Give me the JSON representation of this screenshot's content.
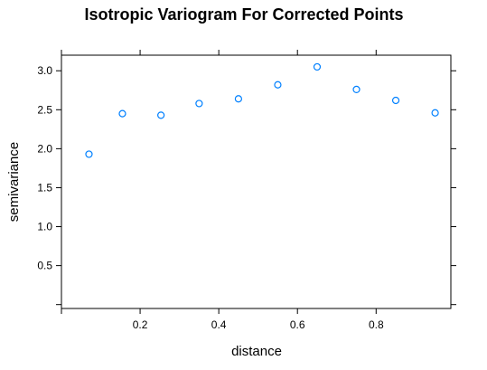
{
  "chart_data": {
    "type": "scatter",
    "title": "Isotropic Variogram For Corrected Points",
    "xlabel": "distance",
    "ylabel": "semivariance",
    "xlim": [
      0,
      0.99
    ],
    "ylim": [
      -0.05,
      3.2
    ],
    "x_ticks": [
      0.2,
      0.4,
      0.6,
      0.8
    ],
    "x_tick_labels": [
      "0.2",
      "0.4",
      "0.6",
      "0.8"
    ],
    "y_ticks": [
      0.5,
      1.0,
      1.5,
      2.0,
      2.5,
      3.0
    ],
    "y_tick_labels": [
      "0.5",
      "1.0",
      "1.5",
      "2.0",
      "2.5",
      "3.0"
    ],
    "grid": false,
    "point_color": "#0080ff",
    "points": [
      {
        "x": 0.07,
        "y": 1.93
      },
      {
        "x": 0.155,
        "y": 2.45
      },
      {
        "x": 0.253,
        "y": 2.43
      },
      {
        "x": 0.35,
        "y": 2.58
      },
      {
        "x": 0.45,
        "y": 2.64
      },
      {
        "x": 0.55,
        "y": 2.82
      },
      {
        "x": 0.65,
        "y": 3.05
      },
      {
        "x": 0.75,
        "y": 2.76
      },
      {
        "x": 0.85,
        "y": 2.62
      },
      {
        "x": 0.95,
        "y": 2.46
      }
    ]
  }
}
